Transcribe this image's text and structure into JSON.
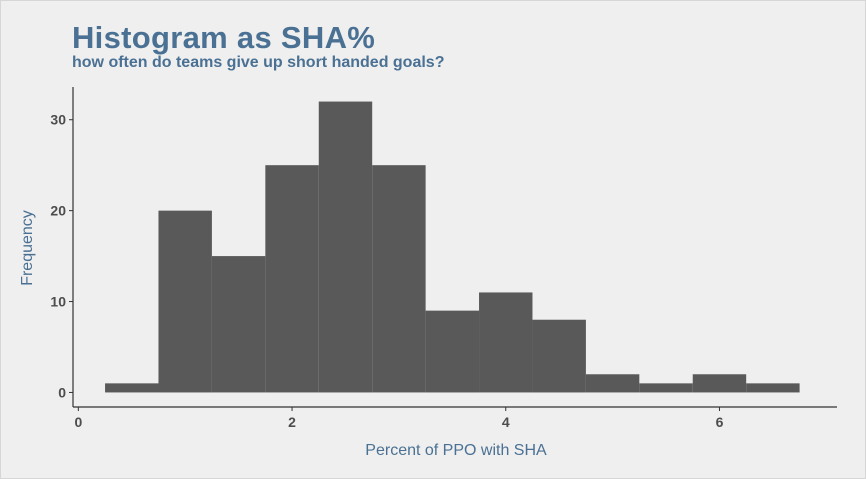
{
  "chart_data": {
    "type": "bar",
    "title": "Histogram as SHA%",
    "subtitle": "how often do teams give up short handed goals?",
    "xlabel": "Percent of PPO with SHA",
    "ylabel": "Frequency",
    "bin_width": 0.5,
    "bins": [
      {
        "x0": 0.25,
        "x1": 0.75,
        "count": 1
      },
      {
        "x0": 0.75,
        "x1": 1.25,
        "count": 20
      },
      {
        "x0": 1.25,
        "x1": 1.75,
        "count": 15
      },
      {
        "x0": 1.75,
        "x1": 2.25,
        "count": 25
      },
      {
        "x0": 2.25,
        "x1": 2.75,
        "count": 32
      },
      {
        "x0": 2.75,
        "x1": 3.25,
        "count": 25
      },
      {
        "x0": 3.25,
        "x1": 3.75,
        "count": 9
      },
      {
        "x0": 3.75,
        "x1": 4.25,
        "count": 11
      },
      {
        "x0": 4.25,
        "x1": 4.75,
        "count": 8
      },
      {
        "x0": 4.75,
        "x1": 5.25,
        "count": 2
      },
      {
        "x0": 5.25,
        "x1": 5.75,
        "count": 1
      },
      {
        "x0": 5.75,
        "x1": 6.25,
        "count": 2
      },
      {
        "x0": 6.25,
        "x1": 6.75,
        "count": 1
      }
    ],
    "xlim": [
      -0.05,
      7.1
    ],
    "ylim": [
      -1.6,
      33.6
    ],
    "xticks": [
      0,
      2,
      4,
      6
    ],
    "yticks": [
      0,
      10,
      20,
      30
    ],
    "bar_color": "#595959",
    "grid": false,
    "legend": "none"
  },
  "colors": {
    "title": "#4a7193",
    "background": "#efefef",
    "axis": "#333333"
  }
}
